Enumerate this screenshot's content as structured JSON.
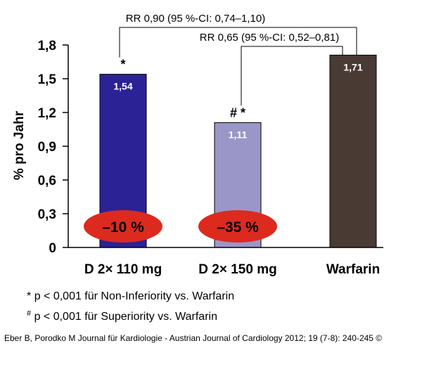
{
  "chart_data": {
    "type": "bar",
    "ylabel": "% pro Jahr",
    "ylim": [
      0,
      1.8
    ],
    "yticks": [
      "0",
      "0,3",
      "0,6",
      "0,9",
      "1,2",
      "1,5",
      "1,8"
    ],
    "ytick_values": [
      0,
      0.3,
      0.6,
      0.9,
      1.2,
      1.5,
      1.8
    ],
    "categories": [
      "D 2× 110 mg",
      "D 2× 150 mg",
      "Warfarin"
    ],
    "values": [
      1.54,
      1.11,
      1.71
    ],
    "value_labels": [
      "1,54",
      "1,11",
      "1,71"
    ],
    "colors": [
      "#2b2296",
      "#9b96c8",
      "#4a3a34"
    ],
    "significance_marks": [
      "*",
      "# *",
      ""
    ],
    "reductions": [
      "–10 %",
      "–35 %",
      ""
    ],
    "reduction_color": "#dd2a1e",
    "comparisons": [
      {
        "label": "RR 0,90 (95 %-CI: 0,74–1,10)",
        "from": 0,
        "to": 2
      },
      {
        "label": "RR 0,65 (95 %-CI: 0,52–0,81)",
        "from": 1,
        "to": 2
      }
    ]
  },
  "footnotes": [
    {
      "symbol": "*",
      "text": "p < 0,001 für Non-Inferiority vs. Warfarin"
    },
    {
      "symbol": "#",
      "text": "p < 0,001 für Superiority vs. Warfarin"
    }
  ],
  "source": "Eber B, Porodko M Journal für Kardiologie - Austrian Journal of Cardiology 2012; 19 (7-8): 240-245 ©"
}
